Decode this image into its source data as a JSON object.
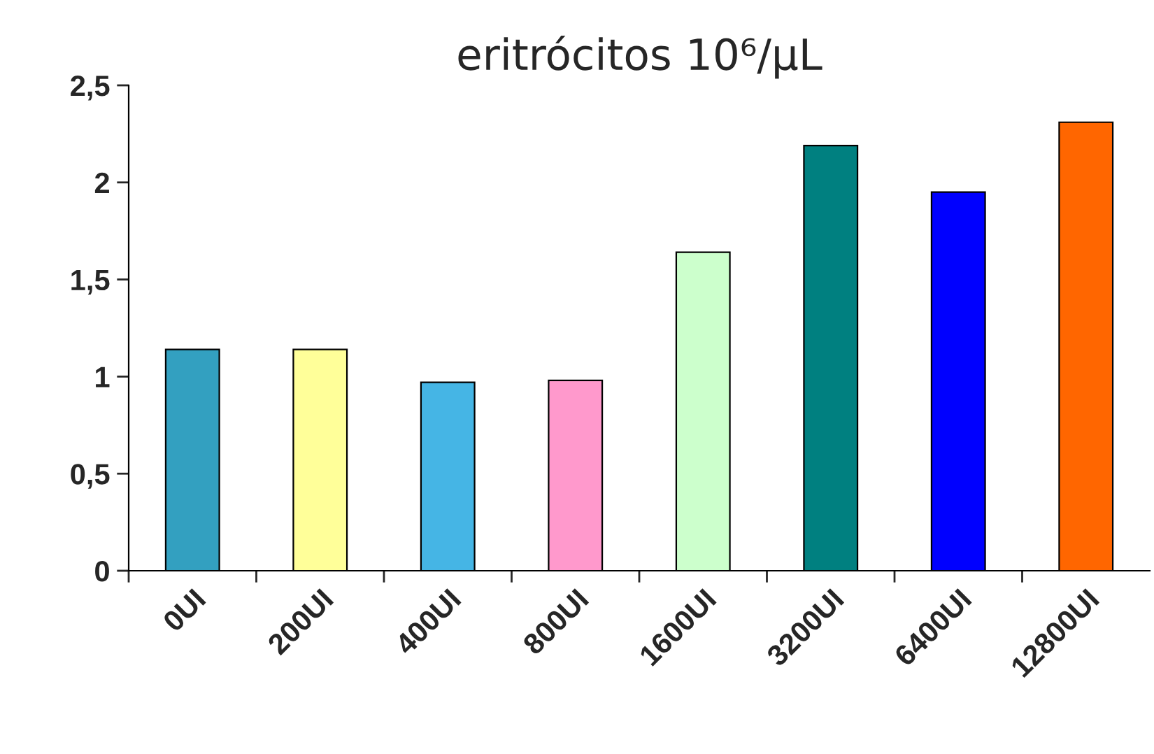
{
  "chart_data": {
    "type": "bar",
    "title": "eritrócitos 10⁶/µL",
    "categories": [
      "0UI",
      "200UI",
      "400UI",
      "800UI",
      "1600UI",
      "3200UI",
      "6400UI",
      "12800UI"
    ],
    "values": [
      1.14,
      1.14,
      0.97,
      0.98,
      1.64,
      2.19,
      1.95,
      2.31
    ],
    "colors": [
      "#33a0c0",
      "#ffff99",
      "#45b5e5",
      "#ff99cc",
      "#ccffcc",
      "#008080",
      "#0000ff",
      "#ff6600"
    ],
    "ylim": [
      0,
      2.5
    ],
    "yticks": [
      0,
      {
        "value": 0.5,
        "label": "0,5"
      },
      1,
      {
        "value": 1.5,
        "label": "1,5"
      },
      2,
      {
        "value": 2.5,
        "label": "2,5"
      }
    ],
    "grid": false,
    "legend": false
  }
}
